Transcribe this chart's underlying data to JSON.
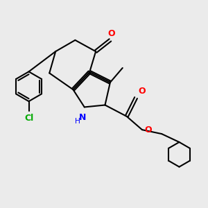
{
  "bg_color": "#ebebeb",
  "bond_color": "#000000",
  "bond_width": 1.5,
  "atom_colors": {
    "O": "#ff0000",
    "N": "#0000ff",
    "Cl": "#00aa00",
    "C": "#000000",
    "H": "#000000"
  },
  "font_size": 9,
  "figsize": [
    3.0,
    3.0
  ],
  "dpi": 100
}
